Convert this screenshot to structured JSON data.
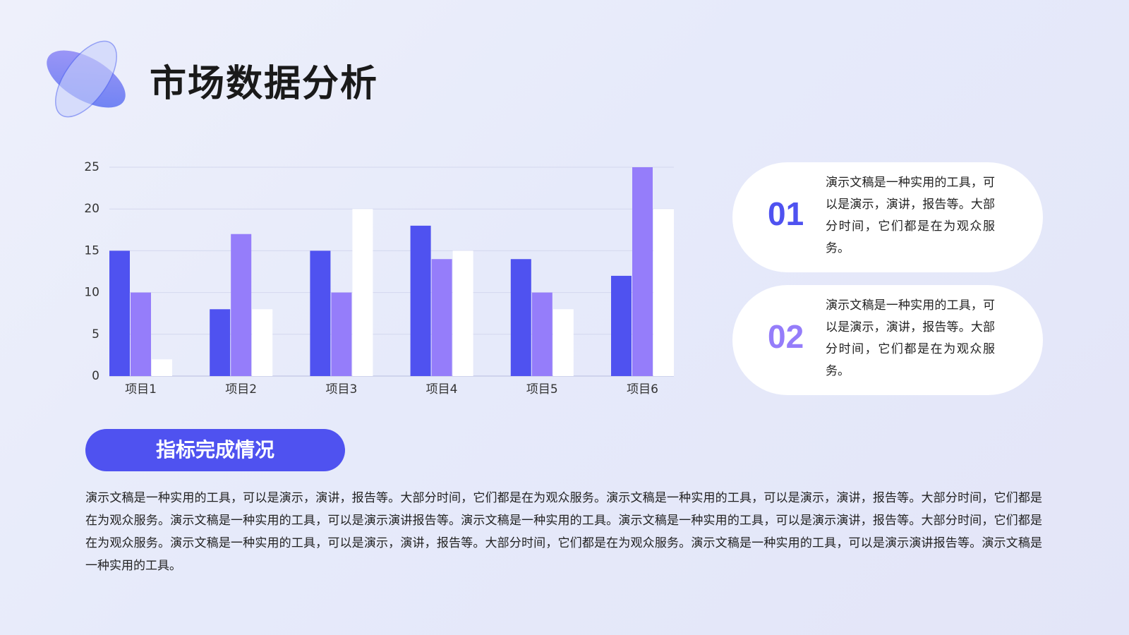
{
  "header": {
    "title": "市场数据分析"
  },
  "chart_data": {
    "type": "bar",
    "categories": [
      "项目1",
      "项目2",
      "项目3",
      "项目4",
      "项目5",
      "项目6"
    ],
    "series": [
      {
        "color": "#4f52f0",
        "values": [
          15,
          8,
          15,
          18,
          14,
          12
        ]
      },
      {
        "color": "#957dfa",
        "values": [
          10,
          17,
          10,
          14,
          10,
          25
        ]
      },
      {
        "color": "#ffffff",
        "values": [
          2,
          8,
          20,
          15,
          8,
          20
        ]
      }
    ],
    "ylim": [
      0,
      25
    ],
    "yticks": [
      0,
      5,
      10,
      15,
      20,
      25
    ],
    "grid": true
  },
  "cards": [
    {
      "number": "01",
      "text": "演示文稿是一种实用的工具，可以是演示，演讲，报告等。大部分时间，它们都是在为观众服务。"
    },
    {
      "number": "02",
      "text": "演示文稿是一种实用的工具，可以是演示，演讲，报告等。大部分时间，它们都是在为观众服务。"
    }
  ],
  "section": {
    "heading": "指标完成情况",
    "paragraph": "演示文稿是一种实用的工具，可以是演示，演讲，报告等。大部分时间，它们都是在为观众服务。演示文稿是一种实用的工具，可以是演示，演讲，报告等。大部分时间，它们都是在为观众服务。演示文稿是一种实用的工具，可以是演示演讲报告等。演示文稿是一种实用的工具。演示文稿是一种实用的工具，可以是演示演讲，报告等。大部分时间，它们都是在为观众服务。演示文稿是一种实用的工具，可以是演示，演讲，报告等。大部分时间，它们都是在为观众服务。演示文稿是一种实用的工具，可以是演示演讲报告等。演示文稿是一种实用的工具。"
  }
}
